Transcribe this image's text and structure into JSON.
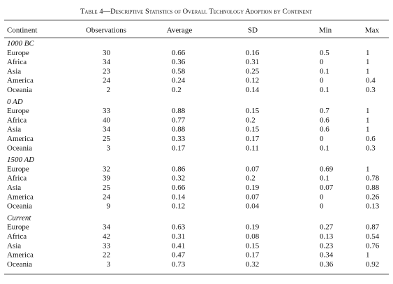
{
  "table": {
    "title": "Table 4—Descriptive Statistics of Overall Technology Adoption by Continent",
    "header": [
      "Continent",
      "Observations",
      "Average",
      "SD",
      "Min",
      "Max"
    ],
    "groups": [
      {
        "label": "1000 BC",
        "rows": [
          [
            "Europe",
            30,
            0.66,
            0.16,
            0.5,
            1
          ],
          [
            "Africa",
            34,
            0.36,
            0.31,
            0,
            1
          ],
          [
            "Asia",
            23,
            0.58,
            0.25,
            0.1,
            1
          ],
          [
            "America",
            24,
            0.24,
            0.12,
            0,
            0.4
          ],
          [
            "Oceania",
            2,
            0.2,
            0.14,
            0.1,
            0.3
          ]
        ]
      },
      {
        "label": "0 AD",
        "rows": [
          [
            "Europe",
            33,
            0.88,
            0.15,
            0.7,
            1
          ],
          [
            "Africa",
            40,
            0.77,
            0.2,
            0.6,
            1
          ],
          [
            "Asia",
            34,
            0.88,
            0.15,
            0.6,
            1
          ],
          [
            "America",
            25,
            0.33,
            0.17,
            0,
            0.6
          ],
          [
            "Oceania",
            3,
            0.17,
            0.11,
            0.1,
            0.3
          ]
        ]
      },
      {
        "label": "1500 AD",
        "rows": [
          [
            "Europe",
            32,
            0.86,
            0.07,
            0.69,
            1
          ],
          [
            "Africa",
            39,
            0.32,
            0.2,
            0.1,
            0.78
          ],
          [
            "Asia",
            25,
            0.66,
            0.19,
            0.07,
            0.88
          ],
          [
            "America",
            24,
            0.14,
            0.07,
            0,
            0.26
          ],
          [
            "Oceania",
            9,
            0.12,
            0.04,
            0,
            0.13
          ]
        ]
      },
      {
        "label": "Current",
        "rows": [
          [
            "Europe",
            34,
            0.63,
            0.19,
            0.27,
            0.87
          ],
          [
            "Africa",
            42,
            0.31,
            0.08,
            0.13,
            0.54
          ],
          [
            "Asia",
            33,
            0.41,
            0.15,
            0.23,
            0.76
          ],
          [
            "America",
            22,
            0.47,
            0.17,
            0.34,
            1
          ],
          [
            "Oceania",
            3,
            0.73,
            0.32,
            0.36,
            0.92
          ]
        ]
      }
    ]
  }
}
